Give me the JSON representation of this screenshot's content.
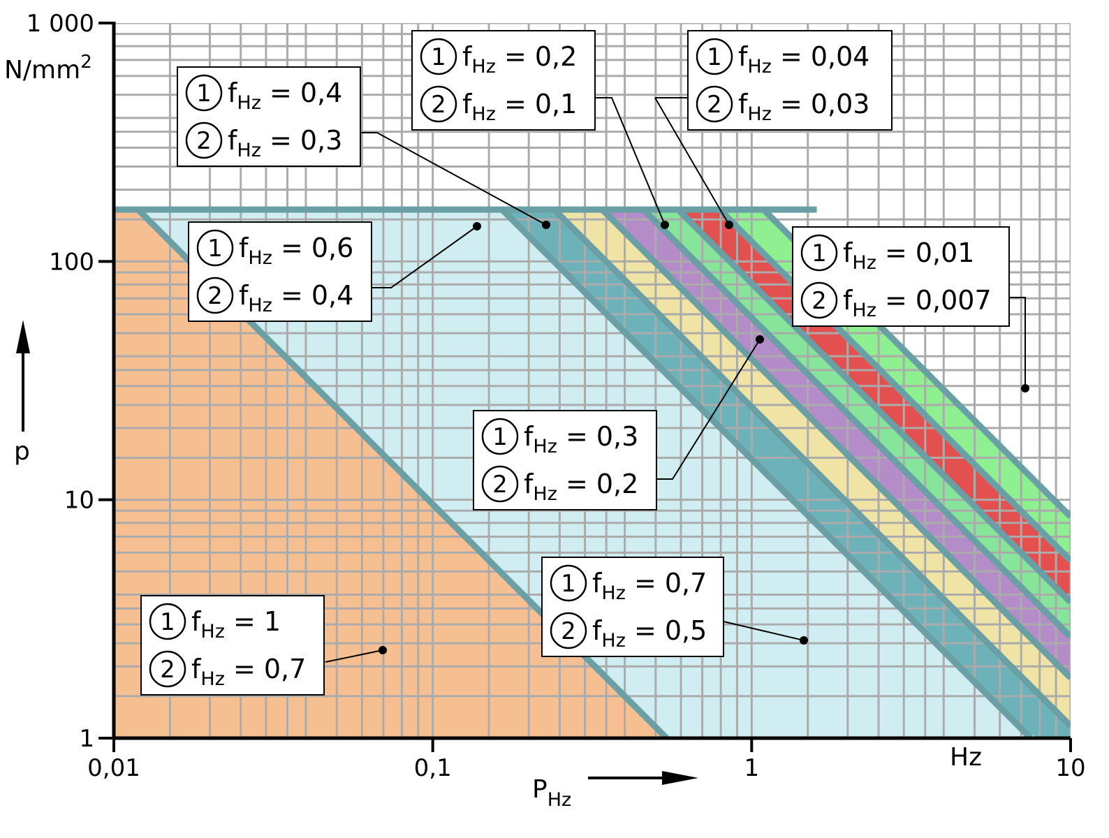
{
  "chart_data": {
    "type": "area",
    "x_scale": "log",
    "y_scale": "log",
    "xlim": [
      0.01,
      10
    ],
    "ylim": [
      1,
      1000
    ],
    "grid": true,
    "xlabel": "P",
    "xlabel_sub": "Hz",
    "x_unit": "Hz",
    "ylabel": "p",
    "y_unit": "N/mm²",
    "y_unit_base": "N/mm",
    "y_unit_exp": "2",
    "x_tick_labels": [
      "0,01",
      "0,1",
      "1",
      "10"
    ],
    "x_tick_values": [
      0.01,
      0.1,
      1,
      10
    ],
    "y_tick_labels": [
      "1",
      "10",
      "100",
      "1 000"
    ],
    "y_tick_values": [
      1,
      10,
      100,
      1000
    ],
    "cap_pressure": 165,
    "boundary_lines": [
      {
        "p_at_1Hz": 0.44
      },
      {
        "p_at_1Hz": 14.8
      },
      {
        "p_at_1Hz": 24.5
      },
      {
        "p_at_1Hz": 39.0
      },
      {
        "p_at_1Hz": 58.0
      },
      {
        "p_at_1Hz": 81.0
      },
      {
        "p_at_1Hz": 121.0
      },
      {
        "p_at_1Hz": 185.0
      }
    ],
    "zones": [
      {
        "label1": "f",
        "sub": "Hz",
        "value1": "1",
        "value2": "0,7",
        "color": "#f6bf92",
        "marker": [
          0.07,
          2.3
        ]
      },
      {
        "label1": "f",
        "sub": "Hz",
        "value1": "0,7",
        "value2": "0,5",
        "color": "#d0eef2",
        "marker": [
          1.5,
          2.5
        ]
      },
      {
        "label1": "f",
        "sub": "Hz",
        "value1": "0,6",
        "value2": "0,4",
        "color": "#6db1b9",
        "marker": [
          0.14,
          147
        ]
      },
      {
        "label1": "f",
        "sub": "Hz",
        "value1": "0,4",
        "value2": "0,3",
        "color": "#efe4a6",
        "marker": [
          0.23,
          148
        ]
      },
      {
        "label1": "f",
        "sub": "Hz",
        "value1": "0,3",
        "value2": "0,2",
        "color": "#b48cc7",
        "marker": [
          1.08,
          45
        ]
      },
      {
        "label1": "f",
        "sub": "Hz",
        "value1": "0,2",
        "value2": "0,1",
        "color": "#86e59a",
        "marker": [
          0.53,
          148
        ]
      },
      {
        "label1": "f",
        "sub": "Hz",
        "value1": "0,04",
        "value2": "0,03",
        "color": "#e2514f",
        "marker": [
          0.84,
          148
        ]
      },
      {
        "label1": "f",
        "sub": "Hz",
        "value1": "0,01",
        "value2": "0,007",
        "color": "#8ef090",
        "marker": [
          7.3,
          29
        ]
      }
    ]
  },
  "circle_labels": [
    "1",
    "2"
  ],
  "colors": {
    "boundary_line": "#6a9fa6",
    "grid": "#ababab",
    "axis": "#000000"
  }
}
